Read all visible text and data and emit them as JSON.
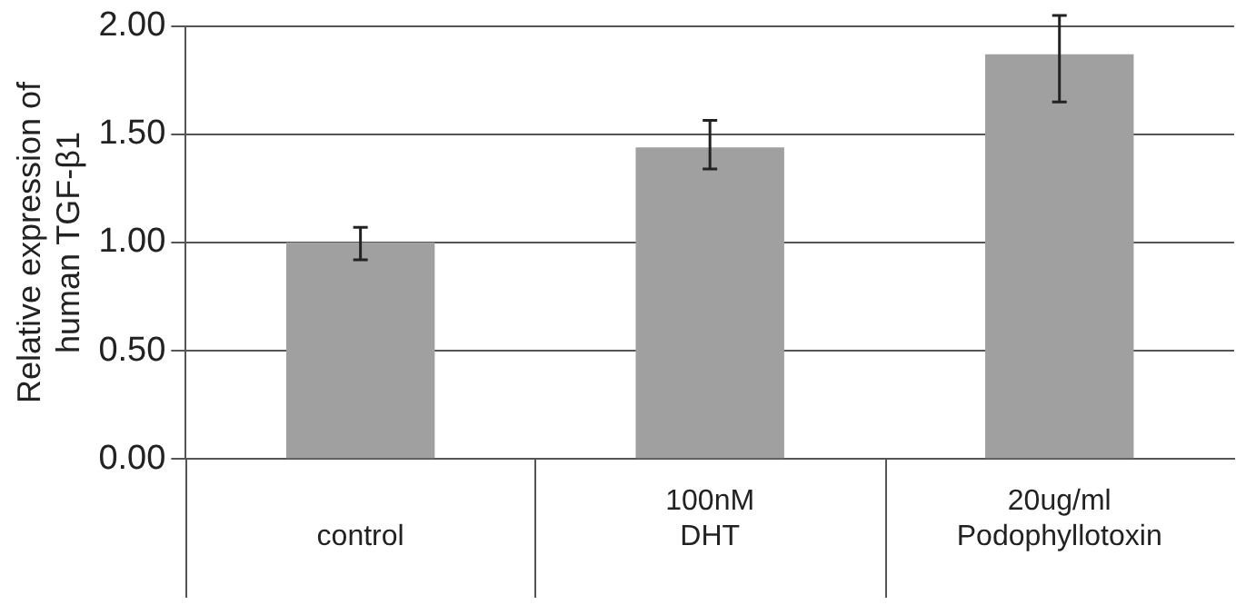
{
  "chart_data": {
    "type": "bar",
    "ylabel": "Relative expression of\nhuman TGF-β1",
    "categories": [
      "control",
      "100nM\nDHT",
      "20ug/ml\nPodophyllotoxin"
    ],
    "values": [
      1.0,
      1.44,
      1.87
    ],
    "errors": [
      [
        0.92,
        1.07
      ],
      [
        1.34,
        1.565
      ],
      [
        1.65,
        2.05
      ]
    ],
    "color": "#a0a0a0",
    "ylim": [
      0,
      2
    ],
    "yticks": [
      {
        "value": 0,
        "label": "0.00"
      },
      {
        "value": 0.5,
        "label": "0.50"
      },
      {
        "value": 1,
        "label": "1.00"
      },
      {
        "value": 1.5,
        "label": "1.50"
      },
      {
        "value": 2,
        "label": "2.00"
      }
    ],
    "grid": "y"
  }
}
